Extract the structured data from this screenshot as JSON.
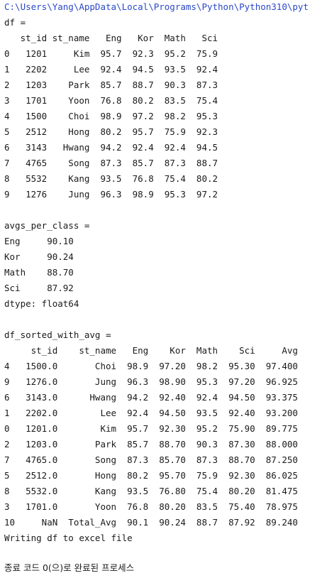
{
  "console": {
    "path": "C:\\Users\\Yang\\AppData\\Local\\Programs\\Python\\Python310\\pyt",
    "sections": {
      "df": {
        "title": "df =",
        "header": "   st_id st_name   Eng   Kor  Math   Sci",
        "rows": [
          "0   1201     Kim  95.7  92.3  95.2  75.9",
          "1   2202     Lee  92.4  94.5  93.5  92.4",
          "2   1203    Park  85.7  88.7  90.3  87.3",
          "3   1701    Yoon  76.8  80.2  83.5  75.4",
          "4   1500    Choi  98.9  97.2  98.2  95.3",
          "5   2512    Hong  80.2  95.7  75.9  92.3",
          "6   3143   Hwang  94.2  92.4  92.4  94.5",
          "7   4765    Song  87.3  85.7  87.3  88.7",
          "8   5532    Kang  93.5  76.8  75.4  80.2",
          "9   1276    Jung  96.3  98.9  95.3  97.2"
        ]
      },
      "avgs": {
        "title": "avgs_per_class =",
        "rows": [
          "Eng     90.10",
          "Kor     90.24",
          "Math    88.70",
          "Sci     87.92",
          "dtype: float64"
        ]
      },
      "sorted": {
        "title": "df_sorted_with_avg =",
        "header": "     st_id    st_name   Eng    Kor  Math    Sci     Avg",
        "rows": [
          "4   1500.0       Choi  98.9  97.20  98.2  95.30  97.400",
          "9   1276.0       Jung  96.3  98.90  95.3  97.20  96.925",
          "6   3143.0      Hwang  94.2  92.40  92.4  94.50  93.375",
          "1   2202.0        Lee  92.4  94.50  93.5  92.40  93.200",
          "0   1201.0        Kim  95.7  92.30  95.2  75.90  89.775",
          "2   1203.0       Park  85.7  88.70  90.3  87.30  88.000",
          "7   4765.0       Song  87.3  85.70  87.3  88.70  87.250",
          "5   2512.0       Hong  80.2  95.70  75.9  92.30  86.025",
          "8   5532.0       Kang  93.5  76.80  75.4  80.20  81.475",
          "3   1701.0       Yoon  76.8  80.20  83.5  75.40  78.975",
          "10     NaN  Total_Avg  90.1  90.24  88.7  87.92  89.240"
        ]
      }
    },
    "status": "Writing df to excel file",
    "exit_message": "종료 코드 0(으)로 완료된 프로세스"
  }
}
